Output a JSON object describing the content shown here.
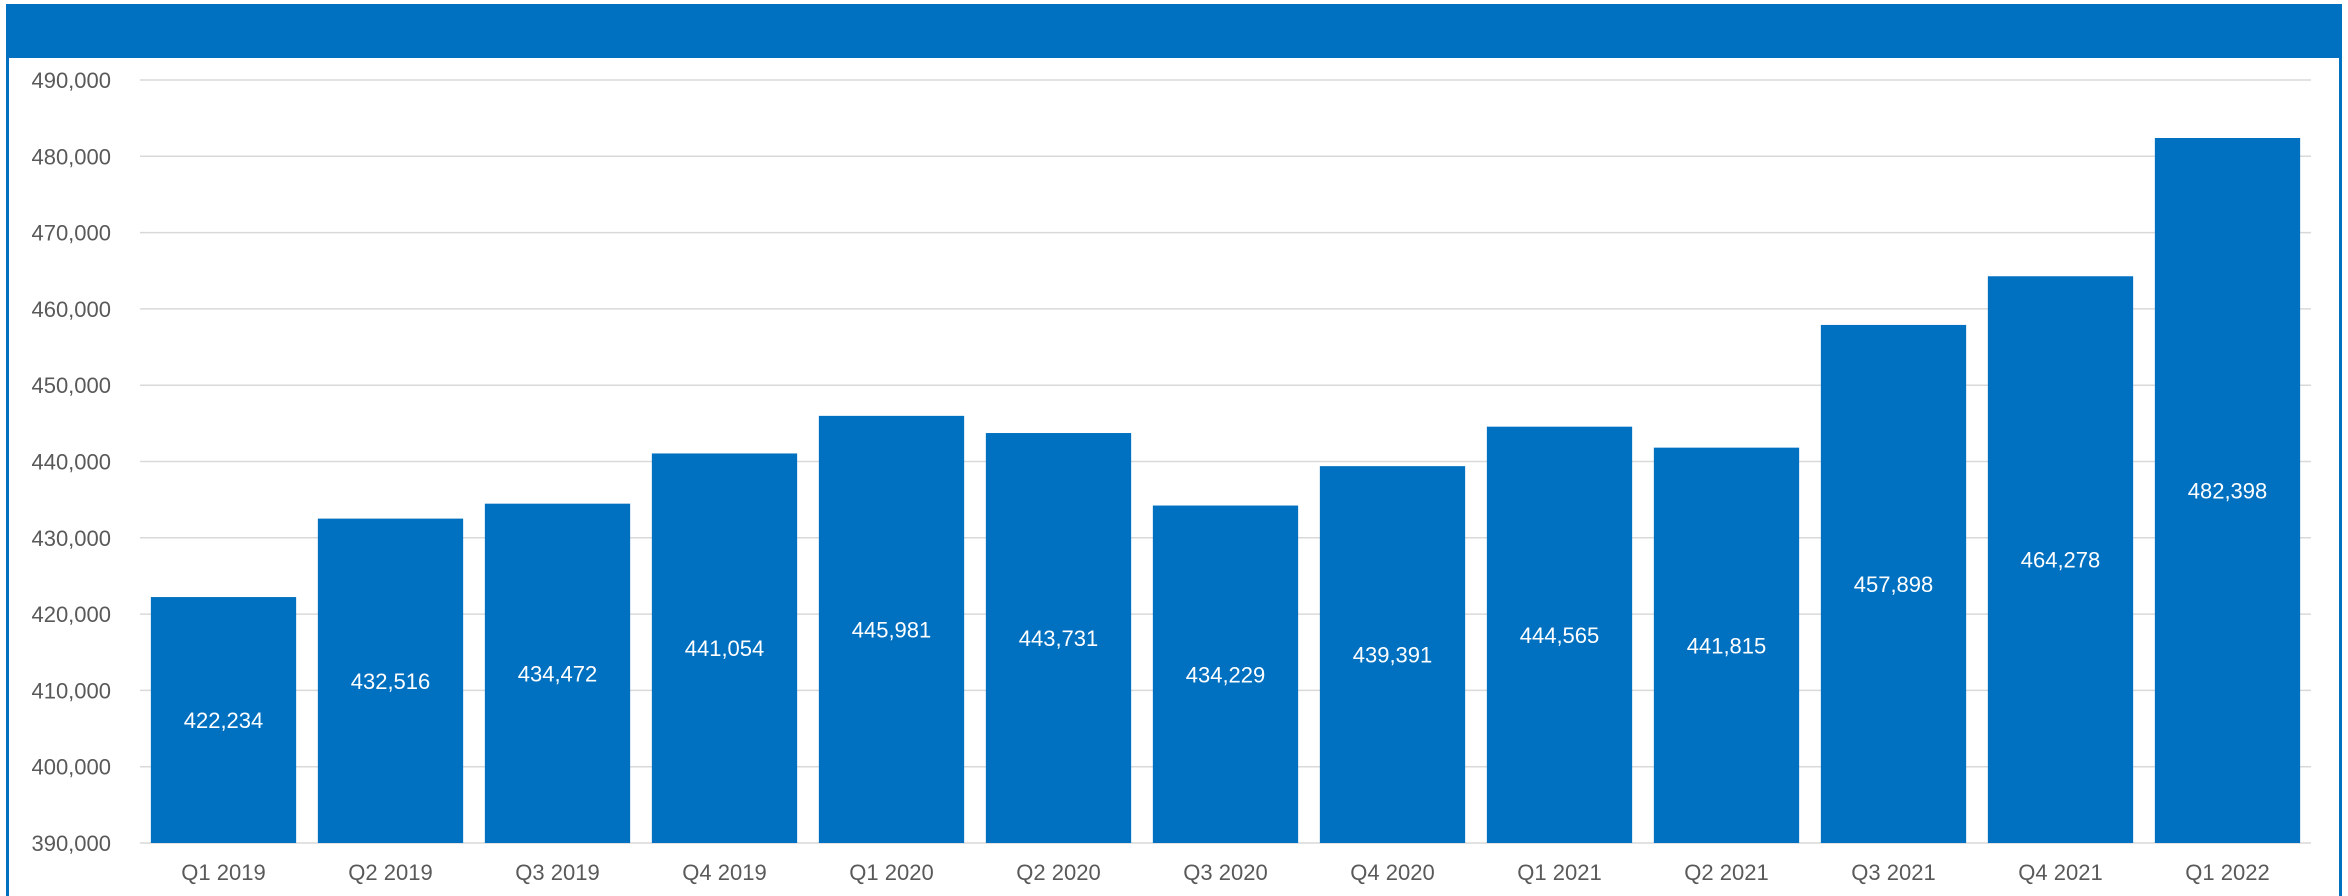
{
  "colors": {
    "bar": "#0070C0",
    "header": "#0070C0",
    "grid": "#D9D9D9",
    "text": "#595959",
    "label": "#FFFFFF"
  },
  "chart_data": {
    "type": "bar",
    "title": "",
    "xlabel": "",
    "ylabel": "",
    "ylim": [
      390000,
      490000
    ],
    "y_tick_step": 10000,
    "y_ticks": [
      "390,000",
      "400,000",
      "410,000",
      "420,000",
      "430,000",
      "440,000",
      "450,000",
      "460,000",
      "470,000",
      "480,000",
      "490,000"
    ],
    "grid": true,
    "legend": "none",
    "categories": [
      "Q1 2019",
      "Q2 2019",
      "Q3 2019",
      "Q4 2019",
      "Q1 2020",
      "Q2 2020",
      "Q3 2020",
      "Q4 2020",
      "Q1 2021",
      "Q2 2021",
      "Q3 2021",
      "Q4 2021",
      "Q1 2022"
    ],
    "values": [
      422234,
      432516,
      434472,
      441054,
      445981,
      443731,
      434229,
      439391,
      444565,
      441815,
      457898,
      464278,
      482398
    ],
    "data_labels": [
      "422,234",
      "432,516",
      "434,472",
      "441,054",
      "445,981",
      "443,731",
      "434,229",
      "439,391",
      "444,565",
      "441,815",
      "457,898",
      "464,278",
      "482,398"
    ]
  }
}
